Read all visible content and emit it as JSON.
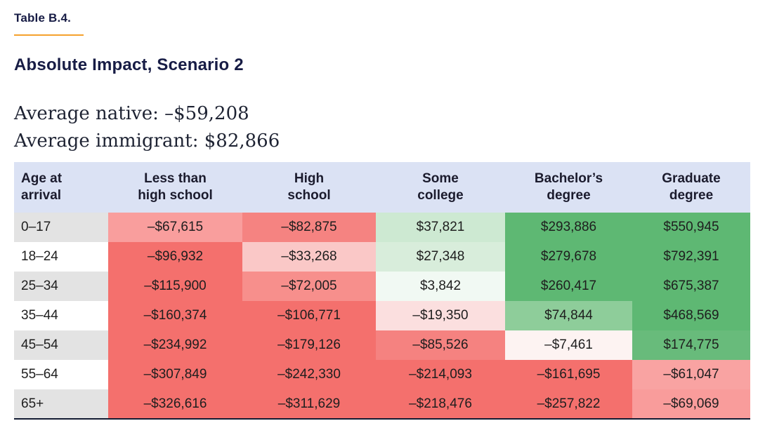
{
  "header": {
    "table_label": "Table B.4.",
    "title": "Absolute Impact, Scenario 2"
  },
  "summary": {
    "native_line": "Average native: –$59,208",
    "immigrant_line": "Average immigrant: $82,866"
  },
  "table": {
    "corner_header": "Age at\narrival",
    "columns": [
      "Less than\nhigh school",
      "High\nschool",
      "Some\ncollege",
      "Bachelor’s\ndegree",
      "Graduate\ndegree"
    ],
    "rows": [
      {
        "age": "0–17",
        "age_bg": "#e3e3e3",
        "cells": [
          {
            "text": "–$67,615",
            "bg": "#f99e9d"
          },
          {
            "text": "–$82,875",
            "bg": "#f58381"
          },
          {
            "text": "$37,821",
            "bg": "#cde9d2"
          },
          {
            "text": "$293,886",
            "bg": "#5eb873"
          },
          {
            "text": "$550,945",
            "bg": "#5eb873"
          }
        ]
      },
      {
        "age": "18–24",
        "age_bg": "#ffffff",
        "cells": [
          {
            "text": "–$96,932",
            "bg": "#f4706d"
          },
          {
            "text": "–$33,268",
            "bg": "#fac8c7"
          },
          {
            "text": "$27,348",
            "bg": "#d8eddb"
          },
          {
            "text": "$279,678",
            "bg": "#5eb873"
          },
          {
            "text": "$792,391",
            "bg": "#5eb873"
          }
        ]
      },
      {
        "age": "25–34",
        "age_bg": "#e3e3e3",
        "cells": [
          {
            "text": "–$115,900",
            "bg": "#f4706d"
          },
          {
            "text": "–$72,005",
            "bg": "#f78f8c"
          },
          {
            "text": "$3,842",
            "bg": "#f1f9f3"
          },
          {
            "text": "$260,417",
            "bg": "#5eb873"
          },
          {
            "text": "$675,387",
            "bg": "#5eb873"
          }
        ]
      },
      {
        "age": "35–44",
        "age_bg": "#ffffff",
        "cells": [
          {
            "text": "–$160,374",
            "bg": "#f4706d"
          },
          {
            "text": "–$106,771",
            "bg": "#f4706d"
          },
          {
            "text": "–$19,350",
            "bg": "#fbdfdf"
          },
          {
            "text": "$74,844",
            "bg": "#8ecd9a"
          },
          {
            "text": "$468,569",
            "bg": "#5eb873"
          }
        ]
      },
      {
        "age": "45–54",
        "age_bg": "#e3e3e3",
        "cells": [
          {
            "text": "–$234,992",
            "bg": "#f4706d"
          },
          {
            "text": "–$179,126",
            "bg": "#f4706d"
          },
          {
            "text": "–$85,526",
            "bg": "#f58280"
          },
          {
            "text": "–$7,461",
            "bg": "#fdf3f2"
          },
          {
            "text": "$174,775",
            "bg": "#68bb7b"
          }
        ]
      },
      {
        "age": "55–64",
        "age_bg": "#ffffff",
        "cells": [
          {
            "text": "–$307,849",
            "bg": "#f4706d"
          },
          {
            "text": "–$242,330",
            "bg": "#f4706d"
          },
          {
            "text": "–$214,093",
            "bg": "#f4706d"
          },
          {
            "text": "–$161,695",
            "bg": "#f4706d"
          },
          {
            "text": "–$61,047",
            "bg": "#f9a3a2"
          }
        ]
      },
      {
        "age": "65+",
        "age_bg": "#e3e3e3",
        "cells": [
          {
            "text": "–$326,616",
            "bg": "#f4706d"
          },
          {
            "text": "–$311,629",
            "bg": "#f4706d"
          },
          {
            "text": "–$218,476",
            "bg": "#f4706d"
          },
          {
            "text": "–$257,822",
            "bg": "#f4706d"
          },
          {
            "text": "–$69,069",
            "bg": "#f99c9b"
          }
        ]
      }
    ]
  },
  "chart_data": {
    "type": "heatmap",
    "title": "Absolute Impact, Scenario 2",
    "table_label": "Table B.4.",
    "average_native": -59208,
    "average_immigrant": 82866,
    "row_axis_label": "Age at arrival",
    "columns": [
      "Less than high school",
      "High school",
      "Some college",
      "Bachelor’s degree",
      "Graduate degree"
    ],
    "rows": [
      "0–17",
      "18–24",
      "25–34",
      "35–44",
      "45–54",
      "55–64",
      "65+"
    ],
    "values": [
      [
        -67615,
        -82875,
        37821,
        293886,
        550945
      ],
      [
        -96932,
        -33268,
        27348,
        279678,
        792391
      ],
      [
        -115900,
        -72005,
        3842,
        260417,
        675387
      ],
      [
        -160374,
        -106771,
        -19350,
        74844,
        468569
      ],
      [
        -234992,
        -179126,
        -85526,
        -7461,
        174775
      ],
      [
        -307849,
        -242330,
        -214093,
        -161695,
        -61047
      ],
      [
        -326616,
        -311629,
        -218476,
        -257822,
        -69069
      ]
    ],
    "color_scale": {
      "strong_negative": "#f4706d",
      "neutral": "#ffffff",
      "strong_positive": "#5eb873"
    },
    "legend_position": "none",
    "grid": false
  },
  "colors": {
    "accent_rule": "#f5a12d",
    "header_row_bg": "#dbe2f4",
    "age_column_gray": "#e3e3e3",
    "bottom_border": "#131c33",
    "heading_text": "#171c45"
  }
}
